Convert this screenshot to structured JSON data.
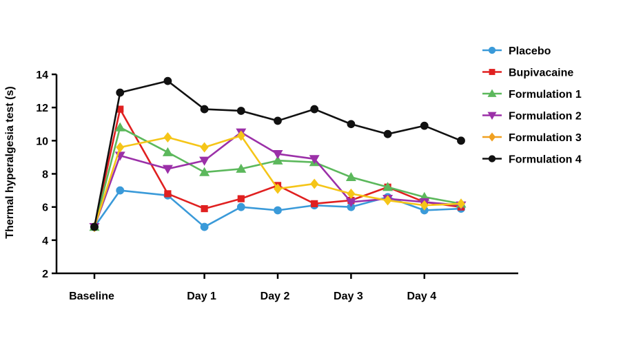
{
  "chart_data": {
    "type": "line",
    "title": "",
    "xlabel": "",
    "ylabel": "Thermal hyperalgesia test (s)",
    "ylim": [
      2,
      14
    ],
    "yticks": [
      2,
      4,
      6,
      8,
      10,
      12,
      14
    ],
    "x_tick_labels": [
      {
        "label": "Baseline",
        "x": 0
      },
      {
        "label": "Day 1",
        "x": 3
      },
      {
        "label": "Day 2",
        "x": 5
      },
      {
        "label": "Day 3",
        "x": 7
      },
      {
        "label": "Day 4",
        "x": 9
      }
    ],
    "x": [
      0,
      0.7,
      2,
      3,
      4,
      5,
      6,
      7,
      8,
      9,
      10
    ],
    "legend_position": "right",
    "grid": false,
    "series": [
      {
        "name": "Placebo",
        "color": "#3a9ad9",
        "marker": "circle",
        "values": [
          4.8,
          7.0,
          6.7,
          4.8,
          6.0,
          5.8,
          6.1,
          6.0,
          6.6,
          5.8,
          5.9
        ]
      },
      {
        "name": "Bupivacaine",
        "color": "#e02020",
        "marker": "square",
        "values": [
          4.8,
          11.9,
          6.8,
          5.9,
          6.5,
          7.3,
          6.2,
          6.4,
          7.2,
          6.3,
          6.0
        ]
      },
      {
        "name": "Formulation 1",
        "color": "#5cb85c",
        "marker": "triangle-up",
        "values": [
          4.8,
          10.8,
          9.3,
          8.1,
          8.3,
          8.8,
          8.7,
          7.8,
          7.2,
          6.6,
          6.2
        ]
      },
      {
        "name": "Formulation 2",
        "color": "#9b30a8",
        "marker": "triangle-down",
        "values": [
          4.8,
          9.1,
          8.3,
          8.8,
          10.5,
          9.2,
          8.9,
          6.3,
          6.5,
          6.3,
          6.1
        ]
      },
      {
        "name": "Formulation 3",
        "color": "#f5c518",
        "marker": "diamond",
        "values": [
          4.8,
          9.6,
          10.2,
          9.6,
          10.3,
          7.1,
          7.4,
          6.8,
          6.4,
          6.1,
          6.2
        ]
      },
      {
        "name": "Formulation 4",
        "color": "#111111",
        "marker": "circle",
        "values": [
          4.8,
          12.9,
          13.6,
          11.9,
          11.8,
          11.2,
          11.9,
          11.0,
          10.4,
          10.9,
          10.0
        ]
      }
    ],
    "legend_marker_colors": {
      "Formulation 3": "#f0a020"
    }
  }
}
